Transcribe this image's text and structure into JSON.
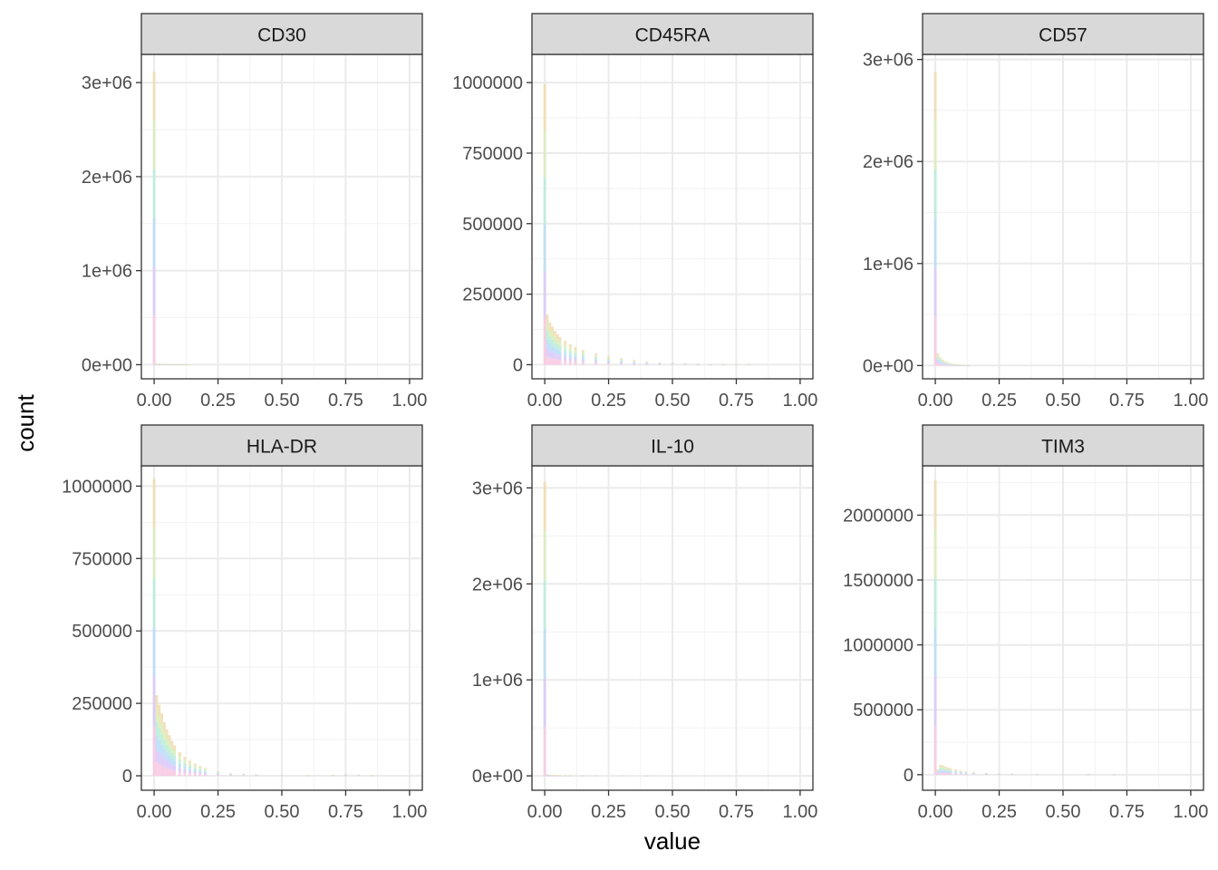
{
  "figure": {
    "xlabel": "value",
    "ylabel": "count"
  },
  "chart_data": [
    {
      "type": "bar",
      "title": "CD30",
      "xlabel": "value",
      "ylabel": "count",
      "xlim": [
        -0.05,
        1.05
      ],
      "ylim": [
        -150000,
        3300000
      ],
      "xticks": [
        0,
        0.25,
        0.5,
        0.75,
        1
      ],
      "xtick_labels": [
        "0.00",
        "0.25",
        "0.50",
        "0.75",
        "1.00"
      ],
      "yticks": [
        0,
        1000000,
        2000000,
        3000000
      ],
      "ytick_labels": [
        "0e+00",
        "1e+06",
        "2e+06",
        "3e+06"
      ],
      "grid": true,
      "bins_center": [
        0,
        0.01,
        0.02,
        0.03,
        0.04,
        0.05,
        0.06,
        0.07,
        0.08,
        0.09,
        0.1,
        0.11,
        0.12,
        0.13
      ],
      "values": [
        3120000,
        12000,
        10000,
        9000,
        8000,
        7000,
        6000,
        5000,
        4500,
        4000,
        3500,
        3000,
        2500,
        2000
      ]
    },
    {
      "type": "bar",
      "title": "CD45RA",
      "xlabel": "value",
      "ylabel": "count",
      "xlim": [
        -0.05,
        1.05
      ],
      "ylim": [
        -50000,
        1100000
      ],
      "xticks": [
        0,
        0.25,
        0.5,
        0.75,
        1
      ],
      "xtick_labels": [
        "0.00",
        "0.25",
        "0.50",
        "0.75",
        "1.00"
      ],
      "yticks": [
        0,
        250000,
        500000,
        750000,
        1000000
      ],
      "ytick_labels": [
        "0",
        "250000",
        "500000",
        "750000",
        "1000000"
      ],
      "grid": true,
      "bins_center": [
        0,
        0.01,
        0.02,
        0.03,
        0.04,
        0.05,
        0.06,
        0.08,
        0.1,
        0.12,
        0.15,
        0.2,
        0.25,
        0.3,
        0.35,
        0.4,
        0.45,
        0.5,
        0.55,
        0.6,
        0.65,
        0.7,
        0.75,
        0.8
      ],
      "values": [
        995000,
        178000,
        150000,
        135000,
        120000,
        108000,
        98000,
        85000,
        72000,
        62000,
        52000,
        40000,
        30000,
        23000,
        17000,
        12000,
        9000,
        7000,
        5000,
        4000,
        3000,
        2000,
        1500,
        1000
      ]
    },
    {
      "type": "bar",
      "title": "CD57",
      "xlabel": "value",
      "ylabel": "count",
      "xlim": [
        -0.05,
        1.05
      ],
      "ylim": [
        -130000,
        3050000
      ],
      "xticks": [
        0,
        0.25,
        0.5,
        0.75,
        1
      ],
      "xtick_labels": [
        "0.00",
        "0.25",
        "0.50",
        "0.75",
        "1.00"
      ],
      "yticks": [
        0,
        1000000,
        2000000,
        3000000
      ],
      "ytick_labels": [
        "0e+00",
        "1e+06",
        "2e+06",
        "3e+06"
      ],
      "grid": true,
      "bins_center": [
        0,
        0.01,
        0.02,
        0.03,
        0.04,
        0.05,
        0.06,
        0.07,
        0.08,
        0.09,
        0.1,
        0.11,
        0.12,
        0.13
      ],
      "values": [
        2880000,
        120000,
        80000,
        55000,
        40000,
        30000,
        22000,
        17000,
        13000,
        10000,
        8000,
        6000,
        5000,
        4000
      ]
    },
    {
      "type": "bar",
      "title": "HLA-DR",
      "xlabel": "value",
      "ylabel": "count",
      "xlim": [
        -0.05,
        1.05
      ],
      "ylim": [
        -50000,
        1070000
      ],
      "xticks": [
        0,
        0.25,
        0.5,
        0.75,
        1
      ],
      "xtick_labels": [
        "0.00",
        "0.25",
        "0.50",
        "0.75",
        "1.00"
      ],
      "yticks": [
        0,
        250000,
        500000,
        750000,
        1000000
      ],
      "ytick_labels": [
        "0",
        "250000",
        "500000",
        "750000",
        "1000000"
      ],
      "grid": true,
      "bins_center": [
        0,
        0.01,
        0.02,
        0.03,
        0.04,
        0.05,
        0.06,
        0.07,
        0.08,
        0.1,
        0.12,
        0.14,
        0.16,
        0.18,
        0.2,
        0.25,
        0.3,
        0.35,
        0.4,
        0.5,
        0.6,
        0.7,
        0.75,
        0.8,
        0.85
      ],
      "values": [
        1025000,
        278000,
        245000,
        215000,
        185000,
        160000,
        140000,
        120000,
        105000,
        82000,
        65000,
        52000,
        42000,
        34000,
        27000,
        16000,
        10000,
        7000,
        5000,
        3000,
        2500,
        3000,
        5000,
        4000,
        2000
      ]
    },
    {
      "type": "bar",
      "title": "IL-10",
      "xlabel": "value",
      "ylabel": "count",
      "xlim": [
        -0.05,
        1.05
      ],
      "ylim": [
        -150000,
        3230000
      ],
      "xticks": [
        0,
        0.25,
        0.5,
        0.75,
        1
      ],
      "xtick_labels": [
        "0.00",
        "0.25",
        "0.50",
        "0.75",
        "1.00"
      ],
      "yticks": [
        0,
        1000000,
        2000000,
        3000000
      ],
      "ytick_labels": [
        "0e+00",
        "1e+06",
        "2e+06",
        "3e+06"
      ],
      "grid": true,
      "bins_center": [
        0,
        0.01,
        0.02,
        0.03,
        0.04,
        0.05,
        0.06,
        0.08,
        0.1,
        0.15,
        0.2,
        0.3,
        0.4,
        0.5
      ],
      "values": [
        3060000,
        15000,
        12000,
        10000,
        9000,
        8000,
        7000,
        6000,
        5000,
        4000,
        3500,
        3000,
        2500,
        2000
      ]
    },
    {
      "type": "bar",
      "title": "TIM3",
      "xlabel": "value",
      "ylabel": "count",
      "xlim": [
        -0.05,
        1.05
      ],
      "ylim": [
        -120000,
        2380000
      ],
      "xticks": [
        0,
        0.25,
        0.5,
        0.75,
        1
      ],
      "xtick_labels": [
        "0.00",
        "0.25",
        "0.50",
        "0.75",
        "1.00"
      ],
      "yticks": [
        0,
        500000,
        1000000,
        1500000,
        2000000
      ],
      "ytick_labels": [
        "0",
        "500000",
        "1000000",
        "1500000",
        "2000000"
      ],
      "grid": true,
      "bins_center": [
        0,
        0.01,
        0.02,
        0.03,
        0.04,
        0.05,
        0.06,
        0.08,
        0.1,
        0.12,
        0.15,
        0.2,
        0.25,
        0.3,
        0.4,
        0.5,
        0.6,
        0.7
      ],
      "values": [
        2270000,
        40000,
        75000,
        70000,
        62000,
        55000,
        48000,
        40000,
        32000,
        26000,
        20000,
        14000,
        10000,
        8000,
        5000,
        4000,
        4000,
        3000
      ]
    }
  ],
  "colors": {
    "panel_border": "#333333",
    "strip_fill": "#d9d9d9",
    "grid_major": "#ebebeb",
    "grid_minor": "#f2f2f2",
    "tick_text": "#4d4d4d",
    "axis_title": "#000000",
    "stack_palette": [
      "#f8c8e0",
      "#d8c8f8",
      "#b8dcf8",
      "#b8ecd8",
      "#d8ecb8",
      "#f0dcb0"
    ]
  }
}
